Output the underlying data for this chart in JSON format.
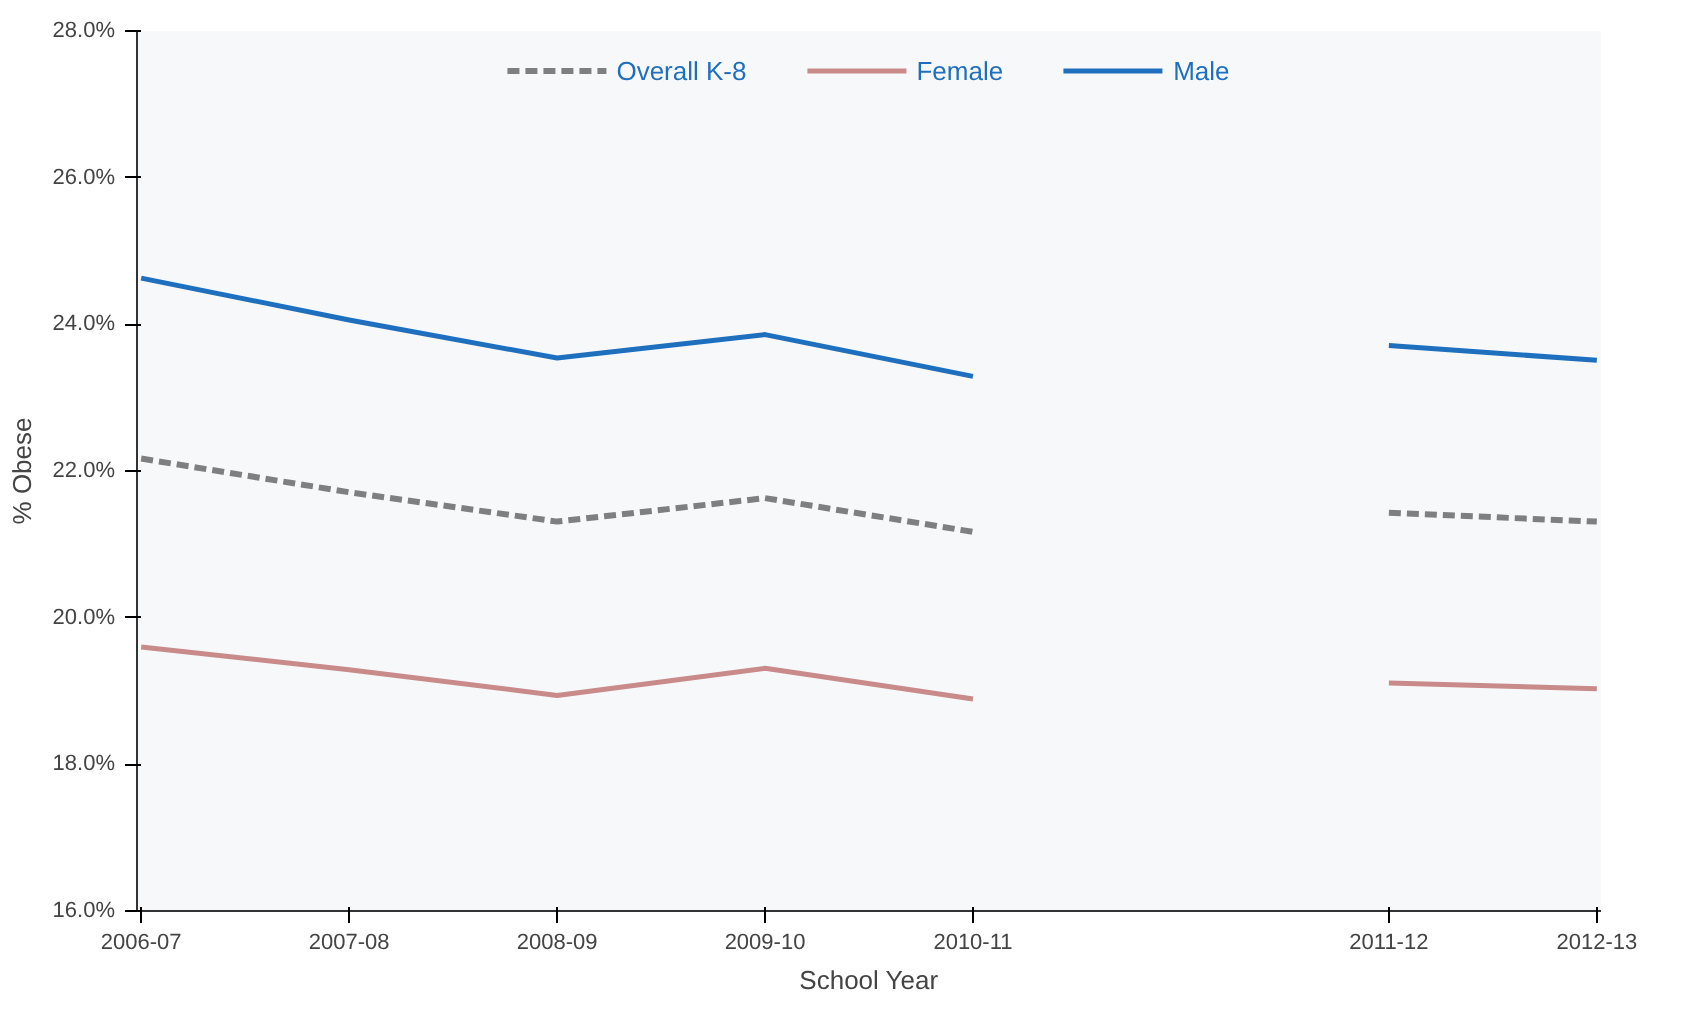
{
  "chart_data": {
    "type": "line",
    "xlabel": "School Year",
    "ylabel": "% Obese",
    "categories": [
      "2006-07",
      "2007-08",
      "2008-09",
      "2009-10",
      "2010-11",
      null,
      "2011-12",
      "2012-13"
    ],
    "series": [
      {
        "name": "Overall K-8",
        "color": "#7f7f7f",
        "line_style": "dashed",
        "values": [
          22.17,
          21.71,
          21.31,
          21.63,
          21.17,
          null,
          21.43,
          21.31
        ]
      },
      {
        "name": "Female",
        "color": "#c98a8a",
        "line_style": "solid",
        "values": [
          19.6,
          19.29,
          18.94,
          19.31,
          18.89,
          null,
          19.11,
          19.03
        ]
      },
      {
        "name": "Male",
        "color": "#1f6fbf",
        "line_style": "solid",
        "values": [
          24.63,
          24.06,
          23.54,
          23.86,
          23.29,
          null,
          23.71,
          23.51
        ]
      }
    ],
    "ylim": [
      16,
      28
    ],
    "yticks": [
      {
        "value": 16,
        "label": "16.0%"
      },
      {
        "value": 18,
        "label": "18.0%"
      },
      {
        "value": 20,
        "label": "20.0%"
      },
      {
        "value": 22,
        "label": "22.0%"
      },
      {
        "value": 24,
        "label": "24.0%"
      },
      {
        "value": 26,
        "label": "26.0%"
      },
      {
        "value": 28,
        "label": "28.0%"
      }
    ],
    "grid": false,
    "legend": "top",
    "marker": "none"
  }
}
